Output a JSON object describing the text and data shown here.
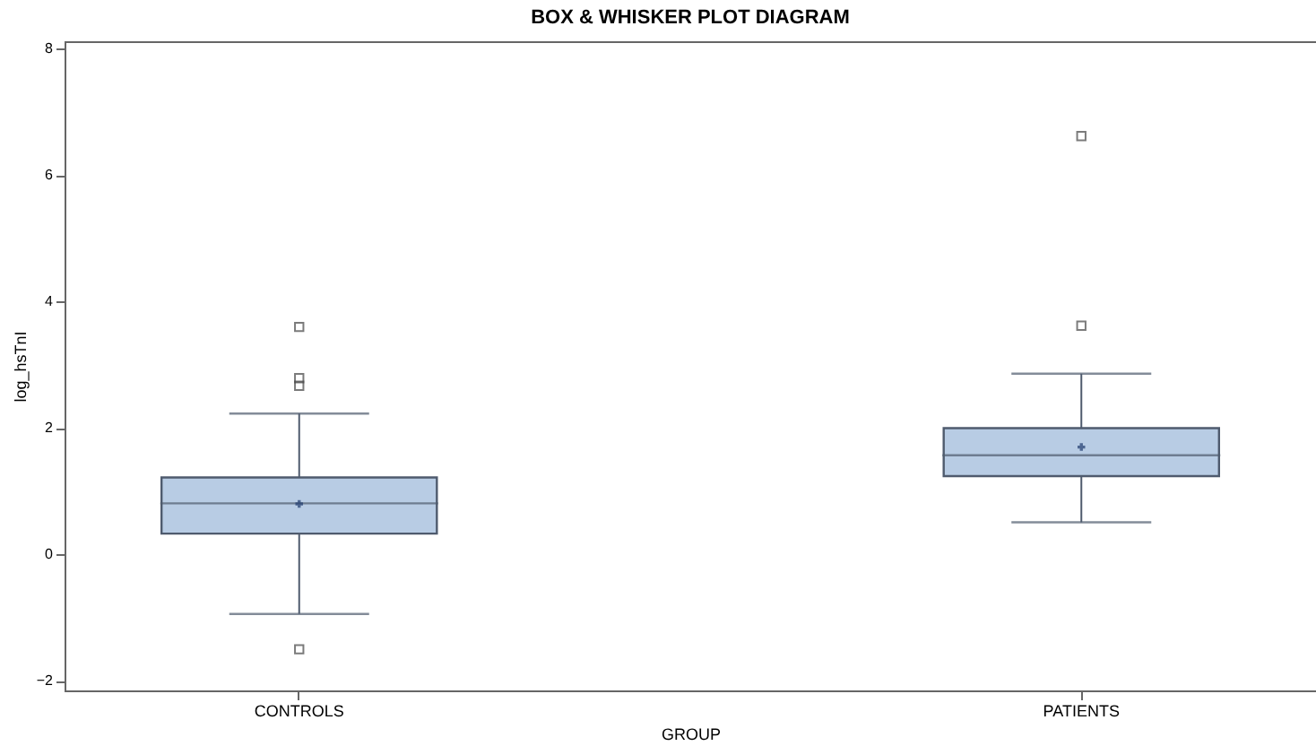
{
  "chart_data": {
    "type": "box",
    "title": "BOX & WHISKER PLOT DIAGRAM",
    "xlabel": "GROUP",
    "ylabel": "log_hsTnI",
    "categories": [
      "CONTROLS",
      "PATIENTS"
    ],
    "ylim": [
      -2.15,
      8.12
    ],
    "yticks": [
      -2,
      0,
      2,
      4,
      6,
      8
    ],
    "grid": false,
    "marker": "square",
    "series": [
      {
        "color": "#b8cce4",
        "boxes": [
          {
            "low": -0.94,
            "q1": 0.33,
            "median": 0.81,
            "q3": 1.22,
            "high": 2.23,
            "mean": 0.8,
            "outliers": [
              3.6,
              2.79,
              2.67,
              -1.5
            ]
          },
          {
            "low": 0.51,
            "q1": 1.24,
            "median": 1.57,
            "q3": 2.0,
            "high": 2.86,
            "mean": 1.7,
            "outliers": [
              6.62,
              3.62
            ]
          }
        ]
      }
    ]
  }
}
